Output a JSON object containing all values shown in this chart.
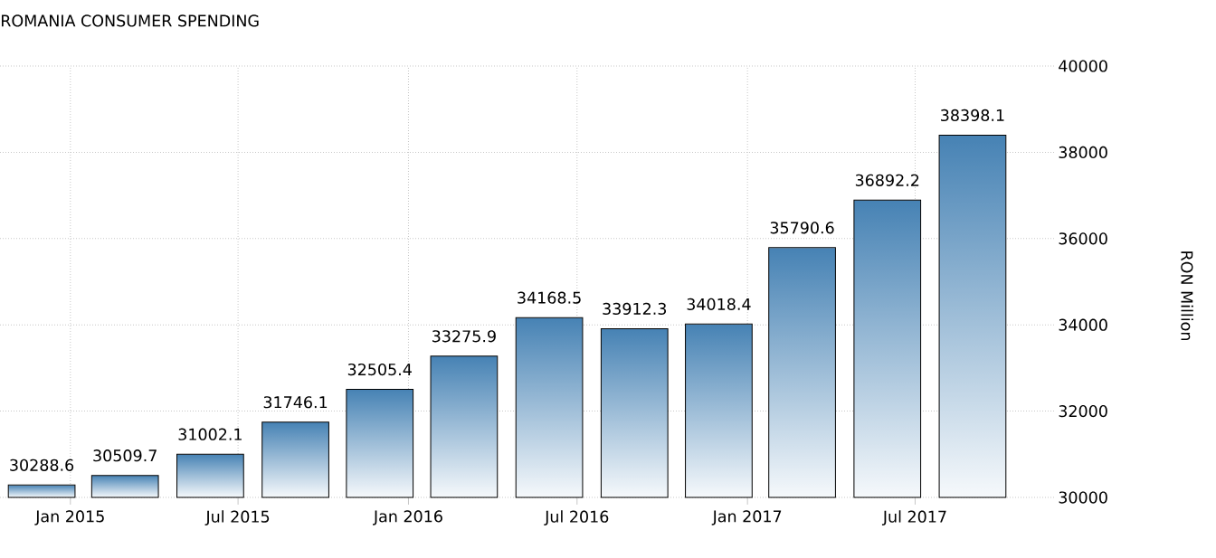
{
  "chart_data": {
    "type": "bar",
    "title": "ROMANIA CONSUMER SPENDING",
    "ylabel": "RON Million",
    "x": [
      "2014-12",
      "2015-03",
      "2015-06",
      "2015-09",
      "2015-12",
      "2016-03",
      "2016-06",
      "2016-09",
      "2016-12",
      "2017-03",
      "2017-06",
      "2017-09"
    ],
    "values": [
      30288.6,
      30509.7,
      31002.1,
      31746.1,
      32505.4,
      33275.9,
      34168.5,
      33912.3,
      34018.4,
      35790.6,
      36892.2,
      38398.1
    ],
    "color": "#4682b4",
    "xlim": [
      "2014-10-17",
      "2017-11-28"
    ],
    "xticks": [
      {
        "value": "2015-01",
        "label": "Jan 2015"
      },
      {
        "value": "2015-07",
        "label": "Jul 2015"
      },
      {
        "value": "2016-01",
        "label": "Jan 2016"
      },
      {
        "value": "2016-07",
        "label": "Jul 2016"
      },
      {
        "value": "2017-01",
        "label": "Jan 2017"
      },
      {
        "value": "2017-07",
        "label": "Jul 2017"
      }
    ],
    "ylim": [
      30000,
      40000
    ],
    "yticks": [
      30000,
      32000,
      34000,
      36000,
      38000,
      40000
    ],
    "grid": true,
    "data_labels": true
  }
}
